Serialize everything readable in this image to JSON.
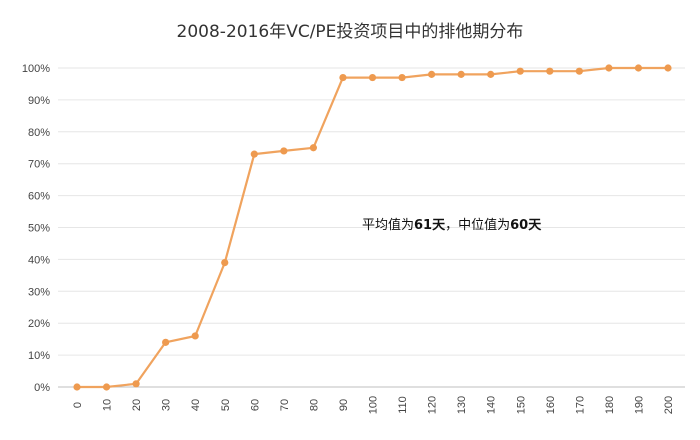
{
  "chart_data": {
    "type": "line",
    "title": "2008-2016年VC/PE投资项目中的排他期分布",
    "xlabel": "",
    "ylabel": "",
    "x": [
      0,
      10,
      20,
      30,
      40,
      50,
      60,
      70,
      80,
      90,
      100,
      110,
      120,
      130,
      140,
      150,
      160,
      170,
      180,
      190,
      200
    ],
    "y_ticks": [
      "0%",
      "10%",
      "20%",
      "30%",
      "40%",
      "50%",
      "60%",
      "70%",
      "80%",
      "90%",
      "100%"
    ],
    "ylim": [
      0,
      100
    ],
    "grid": true,
    "series": [
      {
        "name": "",
        "values": [
          0,
          0,
          1,
          14,
          16,
          39,
          73,
          74,
          75,
          97,
          97,
          97,
          98,
          98,
          98,
          99,
          99,
          99,
          100,
          100,
          100
        ]
      }
    ],
    "annotation": {
      "prefix": "平均值为",
      "mean": "61天",
      "separator": "，中位值为",
      "median": "60天"
    },
    "colors": {
      "line": "#f0a35e",
      "marker": "#ee9a4f",
      "grid": "#e6e6e6",
      "axis": "#bfbfbf"
    }
  }
}
